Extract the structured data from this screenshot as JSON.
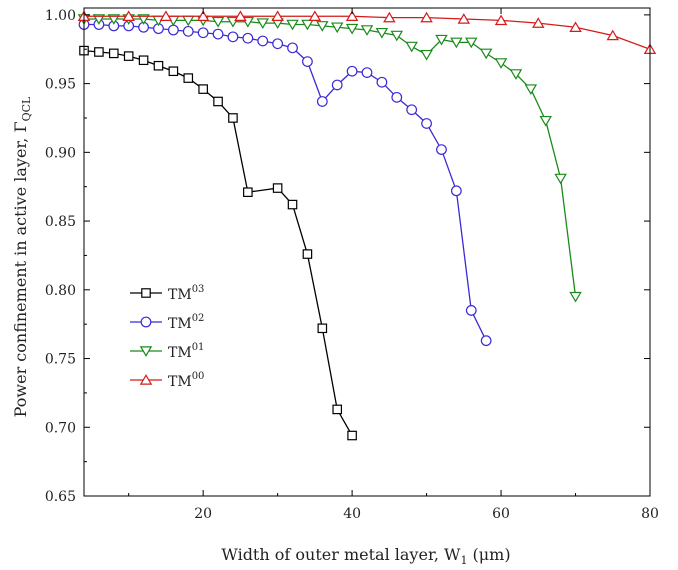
{
  "chart_data": {
    "type": "line",
    "xlabel": "Width of outer metal layer, W1 (μm)",
    "xlabel_parts": {
      "pre": "Width of outer metal layer, W",
      "sub": "1",
      "post": " (μm)"
    },
    "ylabel": "Power confinement in active layer, ΓQCL",
    "ylabel_parts": {
      "pre": "Power confinement in active layer, Γ",
      "sub": "QCL"
    },
    "xlim": [
      4,
      80
    ],
    "ylim": [
      0.65,
      1.005
    ],
    "xticks": [
      20,
      40,
      60,
      80
    ],
    "yticks": [
      0.65,
      0.7,
      0.75,
      0.8,
      0.85,
      0.9,
      0.95,
      1.0
    ],
    "xtick_labels": [
      "20",
      "40",
      "60",
      "80"
    ],
    "ytick_labels": [
      "0.65",
      "0.70",
      "0.75",
      "0.80",
      "0.85",
      "0.90",
      "0.95",
      "1.00"
    ],
    "legend_position": "center-left",
    "series": [
      {
        "name": "TM03",
        "name_base": "TM",
        "name_sup": "03",
        "color": "#000000",
        "marker": "square",
        "x": [
          4,
          6,
          8,
          10,
          12,
          14,
          16,
          18,
          20,
          22,
          24,
          26,
          30,
          32,
          34,
          36,
          38,
          40
        ],
        "y": [
          0.974,
          0.973,
          0.972,
          0.97,
          0.967,
          0.963,
          0.959,
          0.954,
          0.946,
          0.937,
          0.925,
          0.871,
          0.874,
          0.862,
          0.826,
          0.772,
          0.713,
          0.694
        ]
      },
      {
        "name": "TM02",
        "name_base": "TM",
        "name_sup": "02",
        "color": "#3a2ad6",
        "marker": "circle",
        "x": [
          4,
          6,
          8,
          10,
          12,
          14,
          16,
          18,
          20,
          22,
          24,
          26,
          28,
          30,
          32,
          34,
          36,
          38,
          40,
          42,
          44,
          46,
          48,
          50,
          52,
          54,
          56,
          58
        ],
        "y": [
          0.993,
          0.993,
          0.992,
          0.992,
          0.991,
          0.99,
          0.989,
          0.988,
          0.987,
          0.986,
          0.984,
          0.983,
          0.981,
          0.979,
          0.976,
          0.966,
          0.937,
          0.949,
          0.959,
          0.958,
          0.951,
          0.94,
          0.931,
          0.921,
          0.902,
          0.872,
          0.785,
          0.763
        ]
      },
      {
        "name": "TM01",
        "name_base": "TM",
        "name_sup": "01",
        "color": "#1a8a1a",
        "marker": "triangle-down",
        "x": [
          4,
          6,
          8,
          10,
          12,
          14,
          16,
          18,
          20,
          22,
          24,
          26,
          28,
          30,
          32,
          34,
          36,
          38,
          40,
          42,
          44,
          46,
          48,
          50,
          52,
          54,
          56,
          58,
          60,
          62,
          64,
          66,
          68,
          70
        ],
        "y": [
          0.997,
          0.997,
          0.997,
          0.997,
          0.997,
          0.996,
          0.996,
          0.996,
          0.996,
          0.995,
          0.995,
          0.995,
          0.994,
          0.994,
          0.993,
          0.993,
          0.992,
          0.991,
          0.99,
          0.989,
          0.987,
          0.985,
          0.977,
          0.971,
          0.982,
          0.98,
          0.98,
          0.972,
          0.965,
          0.957,
          0.946,
          0.923,
          0.881,
          0.795
        ]
      },
      {
        "name": "TM00",
        "name_base": "TM",
        "name_sup": "00",
        "color": "#d61a1a",
        "marker": "triangle-up",
        "x": [
          4,
          10,
          15,
          20,
          25,
          30,
          35,
          40,
          45,
          50,
          55,
          60,
          65,
          70,
          75,
          80
        ],
        "y": [
          0.999,
          0.999,
          0.999,
          0.999,
          0.999,
          0.999,
          0.999,
          0.999,
          0.998,
          0.998,
          0.997,
          0.996,
          0.994,
          0.991,
          0.985,
          0.975
        ]
      }
    ]
  }
}
